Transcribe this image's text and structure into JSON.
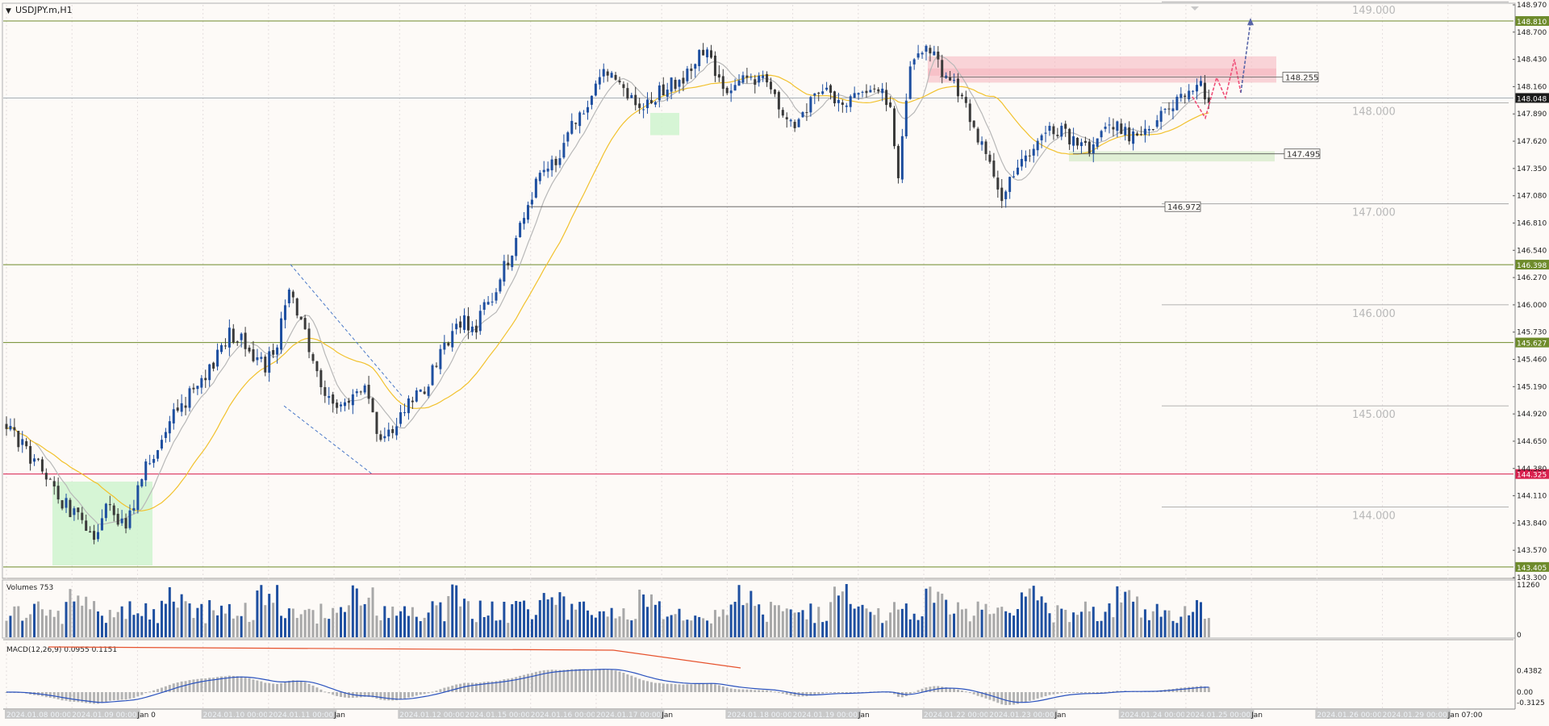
{
  "header": {
    "symbol_label": "USDJPY.m,H1"
  },
  "colors": {
    "background": "#fdfaf7",
    "bull": "#1e4fa0",
    "bear": "#3a3a3a",
    "ma_fast": "#b8b8b8",
    "ma_slow": "#f2c22e",
    "level_green": "#6e8b2b",
    "level_red": "#d81f4d",
    "resistance_zone": "#f7b9c2",
    "support_zone": "#dbeccf",
    "forecast_red": "#ef4f78",
    "forecast_blue": "#5765a8",
    "macd_line": "#2a52be",
    "macd_hist": "#b4b4b4",
    "divergence": "#e6522d",
    "volume_bull": "#1e4fa0",
    "volume_bear": "#a8a8a8"
  },
  "chart_data": {
    "type": "candlestick",
    "symbol": "USDJPY.m",
    "timeframe": "H1",
    "ylim": [
      143.3,
      148.97
    ],
    "price_axis_ticks": [
      "148.970",
      "148.700",
      "148.430",
      "148.160",
      "147.890",
      "147.620",
      "147.350",
      "147.080",
      "146.810",
      "146.540",
      "146.270",
      "146.000",
      "145.730",
      "145.460",
      "145.190",
      "144.920",
      "144.650",
      "144.380",
      "144.110",
      "143.840",
      "143.570",
      "143.300"
    ],
    "round_levels": [
      "149.000",
      "148.000",
      "147.000",
      "146.000",
      "145.000",
      "144.000"
    ],
    "time_axis_labels": [
      "2024.01.08 00:00",
      "2024.01.09 00:00",
      "Jan 0",
      "2024.01.10 00:00",
      "2024.01.11 00:00",
      "Jan",
      "2024.01.12 00:00",
      "2024.01.15 00:00",
      "2024.01.16 00:00",
      "2024.01.17 00:00",
      "Jan",
      "2024.01.18 00:00",
      "2024.01.19 00:00",
      "Jan",
      "2024.01.22 00:00",
      "2024.01.23 00:00",
      "Jan",
      "2024.01.24 00:00",
      "2024.01.25 00:00",
      "Jan",
      "2024.01.26 00:00",
      "2024.01.29 00:00",
      "Jan 07:00"
    ],
    "price_path_anchors": [
      [
        0,
        144.8
      ],
      [
        8,
        144.4
      ],
      [
        14,
        144.05
      ],
      [
        18,
        143.9
      ],
      [
        22,
        143.7
      ],
      [
        25,
        144.0
      ],
      [
        30,
        143.8
      ],
      [
        35,
        144.4
      ],
      [
        42,
        144.9
      ],
      [
        50,
        145.3
      ],
      [
        56,
        145.7
      ],
      [
        59,
        145.7
      ],
      [
        62,
        145.45
      ],
      [
        65,
        145.4
      ],
      [
        68,
        145.6
      ],
      [
        71,
        146.2
      ],
      [
        74,
        145.85
      ],
      [
        77,
        145.4
      ],
      [
        80,
        145.1
      ],
      [
        85,
        145.0
      ],
      [
        90,
        145.25
      ],
      [
        94,
        144.6
      ],
      [
        97,
        144.8
      ],
      [
        100,
        145.0
      ],
      [
        105,
        145.15
      ],
      [
        110,
        145.6
      ],
      [
        114,
        145.85
      ],
      [
        118,
        145.8
      ],
      [
        122,
        146.1
      ],
      [
        126,
        146.45
      ],
      [
        130,
        146.9
      ],
      [
        134,
        147.3
      ],
      [
        138,
        147.4
      ],
      [
        142,
        147.8
      ],
      [
        146,
        148.0
      ],
      [
        150,
        148.4
      ],
      [
        153,
        148.2
      ],
      [
        156,
        148.1
      ],
      [
        160,
        147.95
      ],
      [
        164,
        148.1
      ],
      [
        168,
        148.2
      ],
      [
        172,
        148.3
      ],
      [
        176,
        148.6
      ],
      [
        179,
        148.2
      ],
      [
        182,
        148.1
      ],
      [
        186,
        148.25
      ],
      [
        190,
        148.2
      ],
      [
        194,
        148.0
      ],
      [
        198,
        147.8
      ],
      [
        202,
        148.0
      ],
      [
        206,
        148.1
      ],
      [
        210,
        147.95
      ],
      [
        214,
        148.05
      ],
      [
        218,
        148.2
      ],
      [
        222,
        148.0
      ],
      [
        224,
        147.2
      ],
      [
        227,
        148.4
      ],
      [
        231,
        148.6
      ],
      [
        235,
        148.3
      ],
      [
        239,
        148.1
      ],
      [
        242,
        147.85
      ],
      [
        245,
        147.6
      ],
      [
        248,
        147.3
      ],
      [
        250,
        147.0
      ],
      [
        252,
        147.3
      ],
      [
        256,
        147.5
      ],
      [
        260,
        147.7
      ],
      [
        264,
        147.75
      ],
      [
        268,
        147.6
      ],
      [
        272,
        147.55
      ],
      [
        276,
        147.7
      ],
      [
        280,
        147.75
      ],
      [
        284,
        147.6
      ],
      [
        288,
        147.8
      ],
      [
        292,
        148.0
      ],
      [
        296,
        148.05
      ],
      [
        300,
        148.15
      ],
      [
        302,
        148.05
      ]
    ],
    "indicators": [
      {
        "name": "Volumes",
        "params": "753",
        "axis_ticks": [
          "11260",
          "0"
        ]
      },
      {
        "name": "MACD",
        "params": "(12,26,9)",
        "values": [
          "0.0955",
          "0.1151"
        ],
        "axis_ticks": [
          "0.4382",
          "0.00",
          "-0.3125"
        ]
      }
    ],
    "horizontal_levels": [
      {
        "price": 148.81,
        "label": "148.810",
        "color": "green"
      },
      {
        "price": 148.048,
        "label": "148.048",
        "color": "gray",
        "role": "current price"
      },
      {
        "price": 146.398,
        "label": "146.398",
        "color": "green"
      },
      {
        "price": 145.627,
        "label": "145.627",
        "color": "green"
      },
      {
        "price": 144.325,
        "label": "144.325",
        "color": "red"
      },
      {
        "price": 143.405,
        "label": "143.405",
        "color": "green"
      }
    ],
    "marked_levels": [
      {
        "price": 148.255,
        "label": "148.255"
      },
      {
        "price": 147.495,
        "label": "147.495"
      },
      {
        "price": 146.972,
        "label": "146.972"
      }
    ],
    "zones": [
      {
        "type": "resistance",
        "from": 148.2,
        "to": 148.46
      },
      {
        "type": "support",
        "from": 147.42,
        "to": 147.52
      },
      {
        "type": "demand",
        "from": 143.42,
        "to": 144.25
      },
      {
        "type": "demand",
        "from": 147.68,
        "to": 147.9
      }
    ],
    "forecast": [
      {
        "color": "red",
        "points": [
          [
            148.1,
            147.85
          ],
          [
            148.25,
            148.05
          ],
          [
            148.43,
            148.1
          ]
        ]
      },
      {
        "color": "blue",
        "points": [
          [
            148.1,
            148.8
          ]
        ]
      }
    ]
  }
}
